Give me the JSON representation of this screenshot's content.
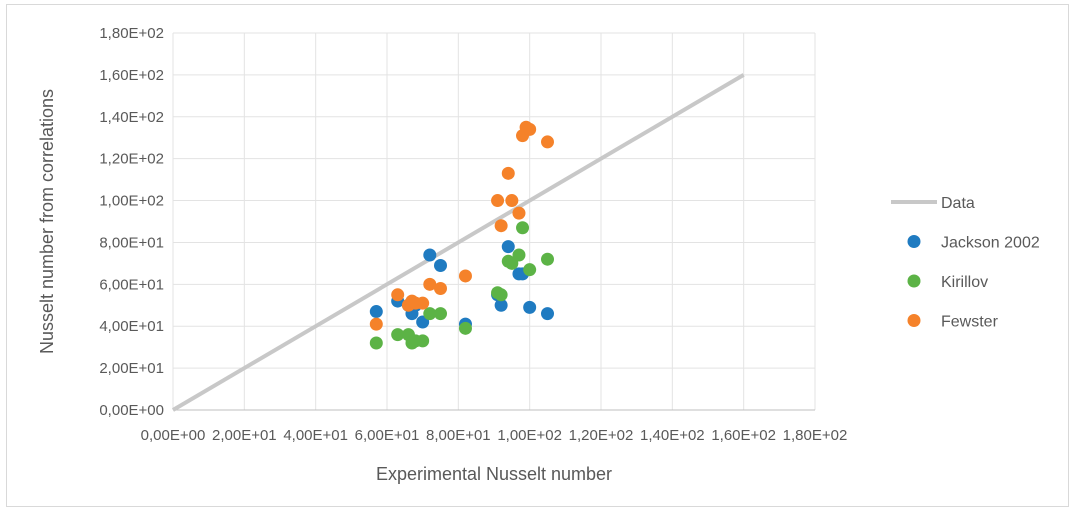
{
  "chart_data": {
    "type": "scatter",
    "title": "",
    "xlabel": "Experimental Nusselt number",
    "ylabel": "Nusselt number from correlations",
    "xlim": [
      0,
      180
    ],
    "ylim": [
      0,
      180
    ],
    "x_ticks": [
      0,
      20,
      40,
      60,
      80,
      100,
      120,
      140,
      160,
      180
    ],
    "y_ticks": [
      0,
      20,
      40,
      60,
      80,
      100,
      120,
      140,
      160,
      180
    ],
    "x_tick_labels": [
      "0,00E+00",
      "2,00E+01",
      "4,00E+01",
      "6,00E+01",
      "8,00E+01",
      "1,00E+02",
      "1,20E+02",
      "1,40E+02",
      "1,60E+02",
      "1,80E+02"
    ],
    "y_tick_labels": [
      "0,00E+00",
      "2,00E+01",
      "4,00E+01",
      "6,00E+01",
      "8,00E+01",
      "1,00E+02",
      "1,20E+02",
      "1,40E+02",
      "1,60E+02",
      "1,80E+02"
    ],
    "grid": true,
    "legend_position": "right",
    "series": [
      {
        "name": "Data",
        "kind": "line",
        "color": "#c8c8c8",
        "x": [
          0,
          160
        ],
        "y": [
          0,
          160
        ]
      },
      {
        "name": "Jackson 2002",
        "kind": "scatter",
        "color": "#1f7bc1",
        "x": [
          57,
          63,
          66,
          67,
          68,
          70,
          72,
          75,
          82,
          91,
          92,
          94,
          97,
          98,
          100,
          105
        ],
        "y": [
          47,
          52,
          50,
          46,
          50,
          42,
          74,
          69,
          41,
          55,
          50,
          78,
          65,
          65,
          49,
          46
        ]
      },
      {
        "name": "Kirillov",
        "kind": "scatter",
        "color": "#5cb346",
        "x": [
          57,
          63,
          66,
          67,
          68,
          70,
          72,
          75,
          82,
          91,
          92,
          94,
          95,
          97,
          98,
          100,
          105
        ],
        "y": [
          32,
          36,
          36,
          32,
          33,
          33,
          46,
          46,
          39,
          56,
          55,
          71,
          70,
          74,
          87,
          67,
          72
        ]
      },
      {
        "name": "Fewster",
        "kind": "scatter",
        "color": "#f5822a",
        "x": [
          57,
          63,
          66,
          67,
          68,
          70,
          72,
          75,
          82,
          91,
          92,
          94,
          95,
          97,
          98,
          99,
          100,
          105
        ],
        "y": [
          41,
          55,
          50,
          52,
          51,
          51,
          60,
          58,
          64,
          100,
          88,
          113,
          100,
          94,
          131,
          135,
          134,
          128
        ]
      }
    ]
  }
}
